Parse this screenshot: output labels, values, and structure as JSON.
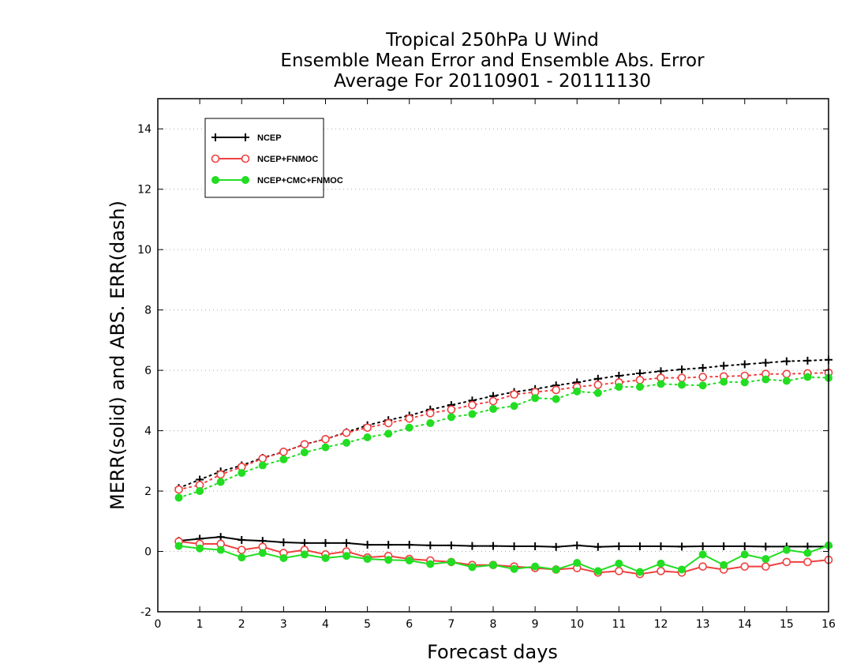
{
  "chart_data": {
    "type": "line",
    "title": [
      "Tropical 250hPa U Wind",
      "Ensemble Mean Error and Ensemble Abs. Error",
      "Average For 20110901 - 20111130"
    ],
    "xlabel": "Forecast days",
    "ylabel": "MERR(solid) and ABS. ERR(dash)",
    "xlim": [
      0,
      16
    ],
    "ylim": [
      -2,
      15
    ],
    "xticks": [
      0,
      1,
      2,
      3,
      4,
      5,
      6,
      7,
      8,
      9,
      10,
      11,
      12,
      13,
      14,
      15,
      16
    ],
    "yticks": [
      -2,
      0,
      2,
      4,
      6,
      8,
      10,
      12,
      14
    ],
    "grid": "horizontal dotted",
    "legend_position": "top-left",
    "x": [
      0.5,
      1,
      1.5,
      2,
      2.5,
      3,
      3.5,
      4,
      4.5,
      5,
      5.5,
      6,
      6.5,
      7,
      7.5,
      8,
      8.5,
      9,
      9.5,
      10,
      10.5,
      11,
      11.5,
      12,
      12.5,
      13,
      13.5,
      14,
      14.5,
      15,
      15.5,
      16
    ],
    "series": [
      {
        "name": "NCEP",
        "color": "#000000",
        "marker": "plus",
        "abs_error": [
          2.1,
          2.38,
          2.65,
          2.85,
          3.1,
          3.3,
          3.55,
          3.72,
          3.95,
          4.18,
          4.35,
          4.5,
          4.7,
          4.85,
          5.0,
          5.15,
          5.28,
          5.38,
          5.5,
          5.6,
          5.72,
          5.82,
          5.9,
          5.97,
          6.03,
          6.08,
          6.15,
          6.2,
          6.25,
          6.3,
          6.32,
          6.35
        ],
        "mean_error": [
          0.35,
          0.42,
          0.48,
          0.38,
          0.35,
          0.3,
          0.28,
          0.28,
          0.28,
          0.22,
          0.22,
          0.22,
          0.2,
          0.2,
          0.18,
          0.18,
          0.17,
          0.17,
          0.15,
          0.2,
          0.15,
          0.17,
          0.17,
          0.17,
          0.16,
          0.17,
          0.17,
          0.17,
          0.16,
          0.16,
          0.16,
          0.16
        ]
      },
      {
        "name": "NCEP+FNMOC",
        "color": "#ef4040",
        "marker": "open-circle",
        "abs_error": [
          2.05,
          2.2,
          2.55,
          2.8,
          3.08,
          3.3,
          3.55,
          3.72,
          3.93,
          4.1,
          4.25,
          4.4,
          4.58,
          4.7,
          4.85,
          4.98,
          5.2,
          5.28,
          5.35,
          5.45,
          5.52,
          5.6,
          5.68,
          5.75,
          5.75,
          5.78,
          5.8,
          5.82,
          5.88,
          5.88,
          5.9,
          5.92
        ],
        "mean_error": [
          0.33,
          0.25,
          0.25,
          0.05,
          0.15,
          -0.05,
          0.05,
          -0.1,
          0.0,
          -0.2,
          -0.15,
          -0.25,
          -0.3,
          -0.35,
          -0.45,
          -0.45,
          -0.5,
          -0.55,
          -0.6,
          -0.55,
          -0.7,
          -0.65,
          -0.75,
          -0.65,
          -0.7,
          -0.5,
          -0.6,
          -0.5,
          -0.5,
          -0.35,
          -0.35,
          -0.28
        ]
      },
      {
        "name": "NCEP+CMC+FNMOC",
        "color": "#22dd22",
        "marker": "filled-circle",
        "abs_error": [
          1.78,
          2.0,
          2.3,
          2.6,
          2.85,
          3.05,
          3.28,
          3.45,
          3.6,
          3.78,
          3.9,
          4.1,
          4.25,
          4.45,
          4.55,
          4.72,
          4.82,
          5.08,
          5.05,
          5.3,
          5.25,
          5.45,
          5.45,
          5.55,
          5.52,
          5.5,
          5.62,
          5.6,
          5.7,
          5.65,
          5.78,
          5.75
        ],
        "mean_error": [
          0.18,
          0.1,
          0.05,
          -0.2,
          -0.05,
          -0.22,
          -0.1,
          -0.22,
          -0.15,
          -0.25,
          -0.28,
          -0.3,
          -0.42,
          -0.35,
          -0.52,
          -0.45,
          -0.58,
          -0.5,
          -0.6,
          -0.38,
          -0.65,
          -0.4,
          -0.68,
          -0.4,
          -0.6,
          -0.1,
          -0.45,
          -0.1,
          -0.25,
          0.05,
          -0.05,
          0.2
        ]
      }
    ]
  }
}
